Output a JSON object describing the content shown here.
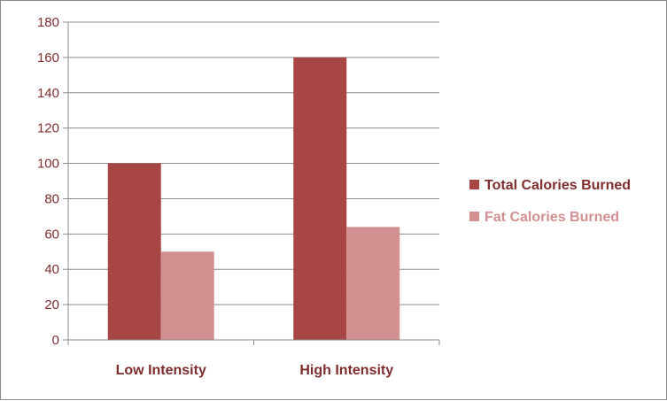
{
  "chart_data": {
    "type": "bar",
    "categories": [
      "Low Intensity",
      "High Intensity"
    ],
    "series": [
      {
        "name": "Total Calories Burned",
        "values": [
          100,
          160
        ],
        "color": "#a84646"
      },
      {
        "name": "Fat Calories Burned",
        "values": [
          50,
          64
        ],
        "color": "#d39090"
      }
    ],
    "title": "",
    "xlabel": "",
    "ylabel": "",
    "ylim": [
      0,
      180
    ],
    "yticks": [
      0,
      20,
      40,
      60,
      80,
      100,
      120,
      140,
      160,
      180
    ],
    "grid": true,
    "legend_position": "right"
  }
}
